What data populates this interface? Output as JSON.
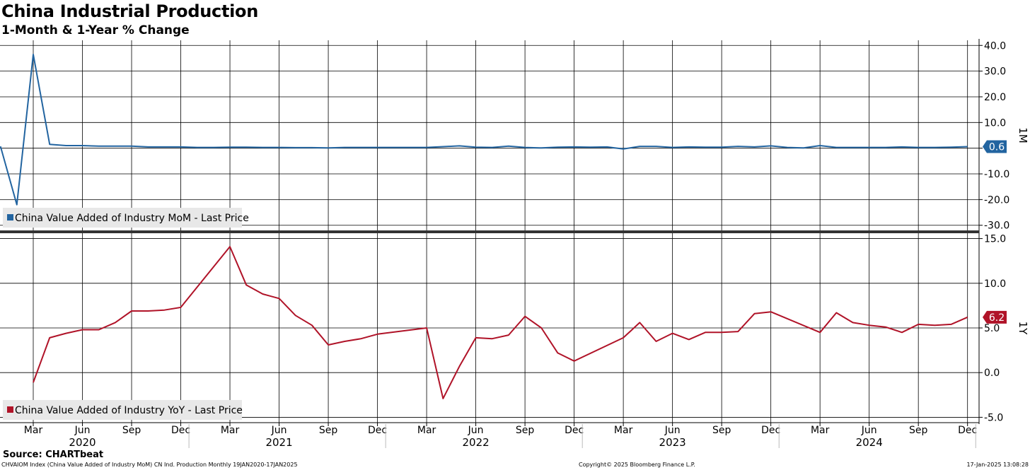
{
  "header": {
    "title": "China Industrial Production",
    "subtitle": "1-Month & 1-Year % Change"
  },
  "footer": {
    "source": "Source: CHARTbeat",
    "index_info": "CHVAIOM Index (China Value Added of Industry MoM) CN Ind. Production  Monthly 19JAN2020-17JAN2025",
    "copyright": "Copyright© 2025 Bloomberg Finance L.P.",
    "timestamp": "17-Jan-2025 13:08:28"
  },
  "colors": {
    "mom_line": "#2264a0",
    "yoy_line": "#b01328",
    "grid": "#000000"
  },
  "chart_data": [
    {
      "type": "line",
      "panel": "top",
      "axis_title": "1M",
      "y_axis_side": "right",
      "ylim": [
        -32,
        42
      ],
      "yticks": [
        40.0,
        30.0,
        20.0,
        10.0,
        0.0,
        -10.0,
        -20.0,
        -30.0
      ],
      "ytick_labels": [
        "40.0",
        "30.0",
        "20.0",
        "10.0",
        "0.0",
        "-10.0",
        "-20.0",
        "-30.0"
      ],
      "last_value_label": "0.6",
      "legend": "China Value Added of Industry MoM - Last Price",
      "legend_position": "bottom-left",
      "grid": true,
      "series": [
        {
          "name": "China Value Added of Industry MoM - Last Price",
          "x": [
            "2020-01",
            "2020-02",
            "2020-03",
            "2020-04",
            "2020-05",
            "2020-06",
            "2020-07",
            "2020-08",
            "2020-09",
            "2020-10",
            "2020-11",
            "2020-12",
            "2021-01",
            "2021-02",
            "2021-03",
            "2021-04",
            "2021-05",
            "2021-06",
            "2021-07",
            "2021-08",
            "2021-09",
            "2021-10",
            "2021-11",
            "2021-12",
            "2022-01",
            "2022-02",
            "2022-03",
            "2022-04",
            "2022-05",
            "2022-06",
            "2022-07",
            "2022-08",
            "2022-09",
            "2022-10",
            "2022-11",
            "2022-12",
            "2023-01",
            "2023-02",
            "2023-03",
            "2023-04",
            "2023-05",
            "2023-06",
            "2023-07",
            "2023-08",
            "2023-09",
            "2023-10",
            "2023-11",
            "2023-12",
            "2024-01",
            "2024-02",
            "2024-03",
            "2024-04",
            "2024-05",
            "2024-06",
            "2024-07",
            "2024-08",
            "2024-09",
            "2024-10",
            "2024-11",
            "2024-12"
          ],
          "values": [
            0.7,
            -22.0,
            36.5,
            1.5,
            1.0,
            1.0,
            0.8,
            0.8,
            0.8,
            0.5,
            0.5,
            0.5,
            0.3,
            0.3,
            0.4,
            0.4,
            0.3,
            0.3,
            0.2,
            0.2,
            0.1,
            0.3,
            0.3,
            0.3,
            0.3,
            0.3,
            0.3,
            0.6,
            0.9,
            0.4,
            0.3,
            0.8,
            0.3,
            0.1,
            0.4,
            0.5,
            0.4,
            0.5,
            -0.3,
            0.7,
            0.7,
            0.3,
            0.5,
            0.4,
            0.4,
            0.7,
            0.5,
            0.9,
            0.3,
            0.1,
            1.0,
            0.3,
            0.3,
            0.3,
            0.3,
            0.5,
            0.3,
            0.3,
            0.4,
            0.6
          ]
        }
      ]
    },
    {
      "type": "line",
      "panel": "bottom",
      "axis_title": "1Y",
      "y_axis_side": "right",
      "ylim": [
        -5.6,
        15.6
      ],
      "yticks": [
        15.0,
        10.0,
        5.0,
        0.0,
        -5.0
      ],
      "ytick_labels": [
        "15.0",
        "10.0",
        "5.0",
        "0.0",
        "-5.0"
      ],
      "last_value_label": "6.2",
      "legend": "China Value Added of Industry YoY - Last Price",
      "legend_position": "bottom-left",
      "grid": true,
      "series": [
        {
          "name": "China Value Added of Industry YoY - Last Price",
          "x": [
            "2020-03",
            "2020-04",
            "2020-05",
            "2020-06",
            "2020-07",
            "2020-08",
            "2020-09",
            "2020-10",
            "2020-11",
            "2020-12",
            "2021-03",
            "2021-04",
            "2021-05",
            "2021-06",
            "2021-07",
            "2021-08",
            "2021-09",
            "2021-10",
            "2021-11",
            "2021-12",
            "2022-03",
            "2022-04",
            "2022-05",
            "2022-06",
            "2022-07",
            "2022-08",
            "2022-09",
            "2022-10",
            "2022-11",
            "2022-12",
            "2023-03",
            "2023-04",
            "2023-05",
            "2023-06",
            "2023-07",
            "2023-08",
            "2023-09",
            "2023-10",
            "2023-11",
            "2023-12",
            "2024-03",
            "2024-04",
            "2024-05",
            "2024-06",
            "2024-07",
            "2024-08",
            "2024-09",
            "2024-10",
            "2024-11",
            "2024-12"
          ],
          "values": [
            -1.1,
            3.9,
            4.4,
            4.8,
            4.8,
            5.6,
            6.9,
            6.9,
            7.0,
            7.3,
            14.1,
            9.8,
            8.8,
            8.3,
            6.4,
            5.3,
            3.1,
            3.5,
            3.8,
            4.3,
            5.0,
            -2.9,
            0.7,
            3.9,
            3.8,
            4.2,
            6.3,
            5.0,
            2.2,
            1.3,
            3.9,
            5.6,
            3.5,
            4.4,
            3.7,
            4.5,
            4.5,
            4.6,
            6.6,
            6.8,
            4.5,
            6.7,
            5.6,
            5.3,
            5.1,
            4.5,
            5.4,
            5.3,
            5.4,
            6.2
          ]
        }
      ]
    }
  ],
  "x_axis": {
    "month_labels": [
      {
        "date": "2020-03",
        "label": "Mar"
      },
      {
        "date": "2020-06",
        "label": "Jun"
      },
      {
        "date": "2020-09",
        "label": "Sep"
      },
      {
        "date": "2020-12",
        "label": "Dec"
      },
      {
        "date": "2021-03",
        "label": "Mar"
      },
      {
        "date": "2021-06",
        "label": "Jun"
      },
      {
        "date": "2021-09",
        "label": "Sep"
      },
      {
        "date": "2021-12",
        "label": "Dec"
      },
      {
        "date": "2022-03",
        "label": "Mar"
      },
      {
        "date": "2022-06",
        "label": "Jun"
      },
      {
        "date": "2022-09",
        "label": "Sep"
      },
      {
        "date": "2022-12",
        "label": "Dec"
      },
      {
        "date": "2023-03",
        "label": "Mar"
      },
      {
        "date": "2023-06",
        "label": "Jun"
      },
      {
        "date": "2023-09",
        "label": "Sep"
      },
      {
        "date": "2023-12",
        "label": "Dec"
      },
      {
        "date": "2024-03",
        "label": "Mar"
      },
      {
        "date": "2024-06",
        "label": "Jun"
      },
      {
        "date": "2024-09",
        "label": "Sep"
      },
      {
        "date": "2024-12",
        "label": "Dec"
      }
    ],
    "year_labels": [
      {
        "date": "2020-06",
        "label": "2020"
      },
      {
        "date": "2021-06",
        "label": "2021"
      },
      {
        "date": "2022-06",
        "label": "2022"
      },
      {
        "date": "2023-06",
        "label": "2023"
      },
      {
        "date": "2024-06",
        "label": "2024"
      }
    ]
  }
}
